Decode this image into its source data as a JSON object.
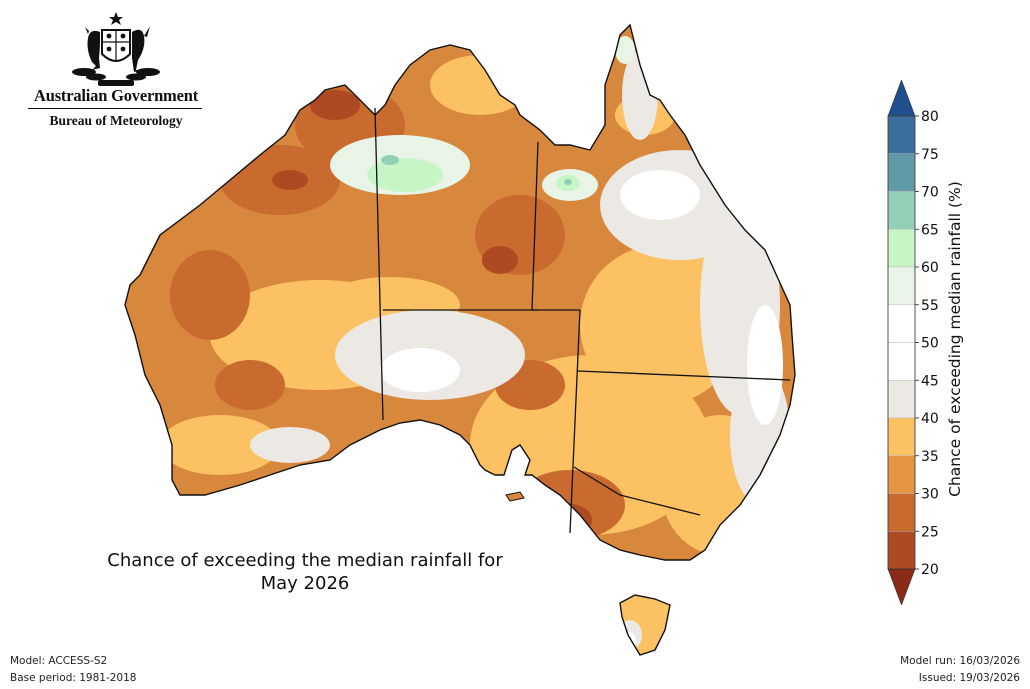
{
  "header": {
    "government": "Australian Government",
    "agency": "Bureau of Meteorology",
    "emblem_icon": "commonwealth-coat-of-arms-icon"
  },
  "map": {
    "title_line1": "Chance of exceeding the median rainfall for",
    "title_line2": "May 2026",
    "land_base_color": "#d8883c",
    "ocean_color": "#ffffff"
  },
  "colorbar": {
    "label": "Chance of exceeding median rainfall (%)",
    "ticks": [
      "80",
      "75",
      "70",
      "65",
      "60",
      "55",
      "50",
      "45",
      "40",
      "35",
      "30",
      "25",
      "20"
    ],
    "bands": [
      {
        "range": "above 80",
        "color": "#1f4f8c"
      },
      {
        "range": "75-80",
        "color": "#3a6f9e"
      },
      {
        "range": "70-75",
        "color": "#5f9aa6"
      },
      {
        "range": "65-70",
        "color": "#92cfb6"
      },
      {
        "range": "60-65",
        "color": "#c8f5c6"
      },
      {
        "range": "55-60",
        "color": "#e8f4e6"
      },
      {
        "range": "50-55",
        "color": "#ffffff"
      },
      {
        "range": "45-50",
        "color": "#ffffff"
      },
      {
        "range": "40-45",
        "color": "#ece8e3"
      },
      {
        "range": "35-40",
        "color": "#fbc162"
      },
      {
        "range": "30-35",
        "color": "#e5953f"
      },
      {
        "range": "25-30",
        "color": "#c96a2e"
      },
      {
        "range": "20-25",
        "color": "#ad4a22"
      },
      {
        "range": "below 20",
        "color": "#8c2a18"
      }
    ]
  },
  "footer": {
    "model": "Model: ACCESS-S2",
    "base_period": "Base period: 1981-2018",
    "model_run": "Model run: 16/03/2026",
    "issued": "Issued: 19/03/2026"
  }
}
